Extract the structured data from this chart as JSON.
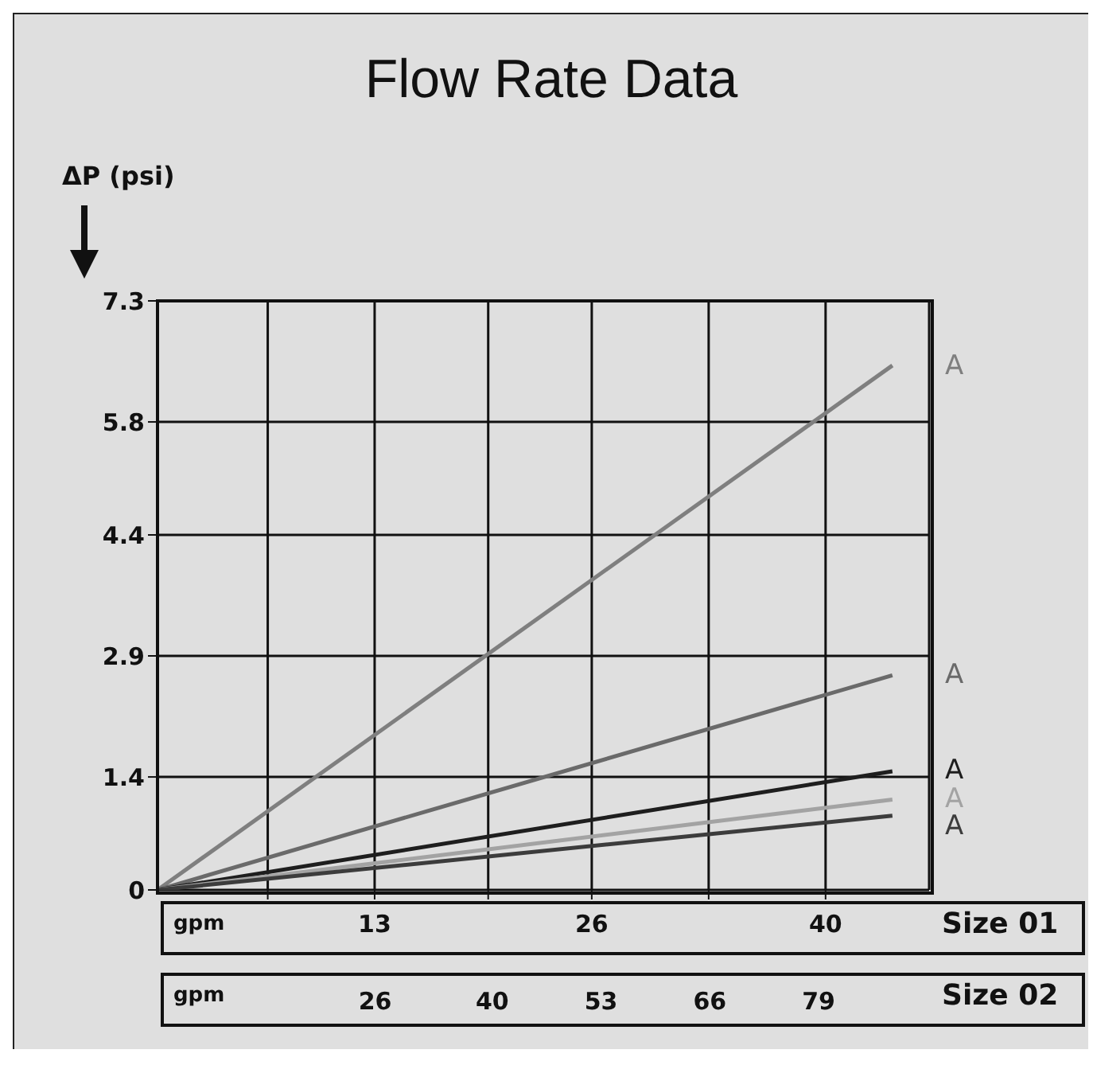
{
  "chart_data": {
    "type": "line",
    "title": "Flow Rate Data",
    "ylabel": "ΔP (psi)",
    "xlabel": "Size 01",
    "x2label": "Size 02",
    "annotations": [
      "gpm",
      "gpm"
    ],
    "x": [
      0,
      44
    ],
    "series": [
      {
        "name": "A",
        "color": "#7f7f7f",
        "values": [
          0,
          6.5
        ]
      },
      {
        "name": "A",
        "color": "#6a6a6a",
        "values": [
          0,
          2.66
        ]
      },
      {
        "name": "A",
        "color": "#1e1e1e",
        "values": [
          0,
          1.47
        ]
      },
      {
        "name": "A",
        "color": "#a3a3a3",
        "values": [
          0,
          1.12
        ]
      },
      {
        "name": "A",
        "color": "#3c3c3c",
        "values": [
          0,
          0.92
        ]
      }
    ],
    "xlim": [
      0,
      46.2
    ],
    "xticks": [
      {
        "value": 6.6,
        "label": null
      },
      13,
      {
        "value": 19.8,
        "label": null
      },
      26,
      {
        "value": 33,
        "label": null
      },
      40
    ],
    "x2lim": [
      0,
      92.2
    ],
    "x2ticks": [
      26,
      40,
      53,
      66,
      79
    ],
    "ylim": [
      0,
      7.3
    ],
    "yticks": [
      0,
      1.4,
      2.9,
      4.4,
      5.8,
      7.3
    ],
    "grid": true,
    "legend": false,
    "marker": "none",
    "line_style": "solid"
  }
}
